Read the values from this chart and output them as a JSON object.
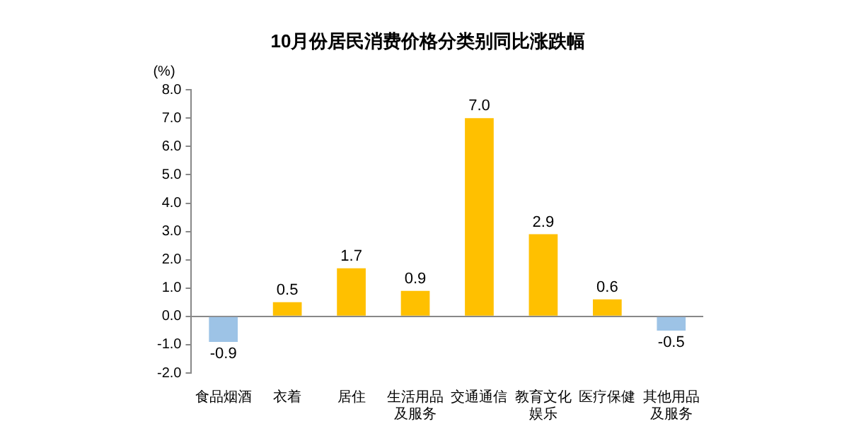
{
  "chart_data": {
    "type": "bar",
    "title": "10月份居民消费价格分类别同比涨跌幅",
    "ylabel": "(%)",
    "categories": [
      "食品烟酒",
      "衣着",
      "居住",
      "生活用品及服务",
      "交通通信",
      "教育文化娱乐",
      "医疗保健",
      "其他用品及服务"
    ],
    "values": [
      -0.9,
      0.5,
      1.7,
      0.9,
      7.0,
      2.9,
      0.6,
      -0.5
    ],
    "colors": [
      "#9dc3e6",
      "#ffc000",
      "#ffc000",
      "#ffc000",
      "#ffc000",
      "#ffc000",
      "#ffc000",
      "#9dc3e6"
    ],
    "value_labels": [
      "-0.9",
      "0.5",
      "1.7",
      "0.9",
      "7.0",
      "2.9",
      "0.6",
      "-0.5"
    ],
    "ylim": [
      -2,
      8
    ],
    "yticks": [
      {
        "value": -2,
        "label": "-2.0"
      },
      {
        "value": -1,
        "label": "-1.0"
      },
      {
        "value": 0,
        "label": "0.0"
      },
      {
        "value": 1,
        "label": "1.0"
      },
      {
        "value": 2,
        "label": "2.0"
      },
      {
        "value": 3,
        "label": "3.0"
      },
      {
        "value": 4,
        "label": "4.0"
      },
      {
        "value": 5,
        "label": "5.0"
      },
      {
        "value": 6,
        "label": "6.0"
      },
      {
        "value": 7,
        "label": "7.0"
      },
      {
        "value": 8,
        "label": "8.0"
      }
    ]
  }
}
